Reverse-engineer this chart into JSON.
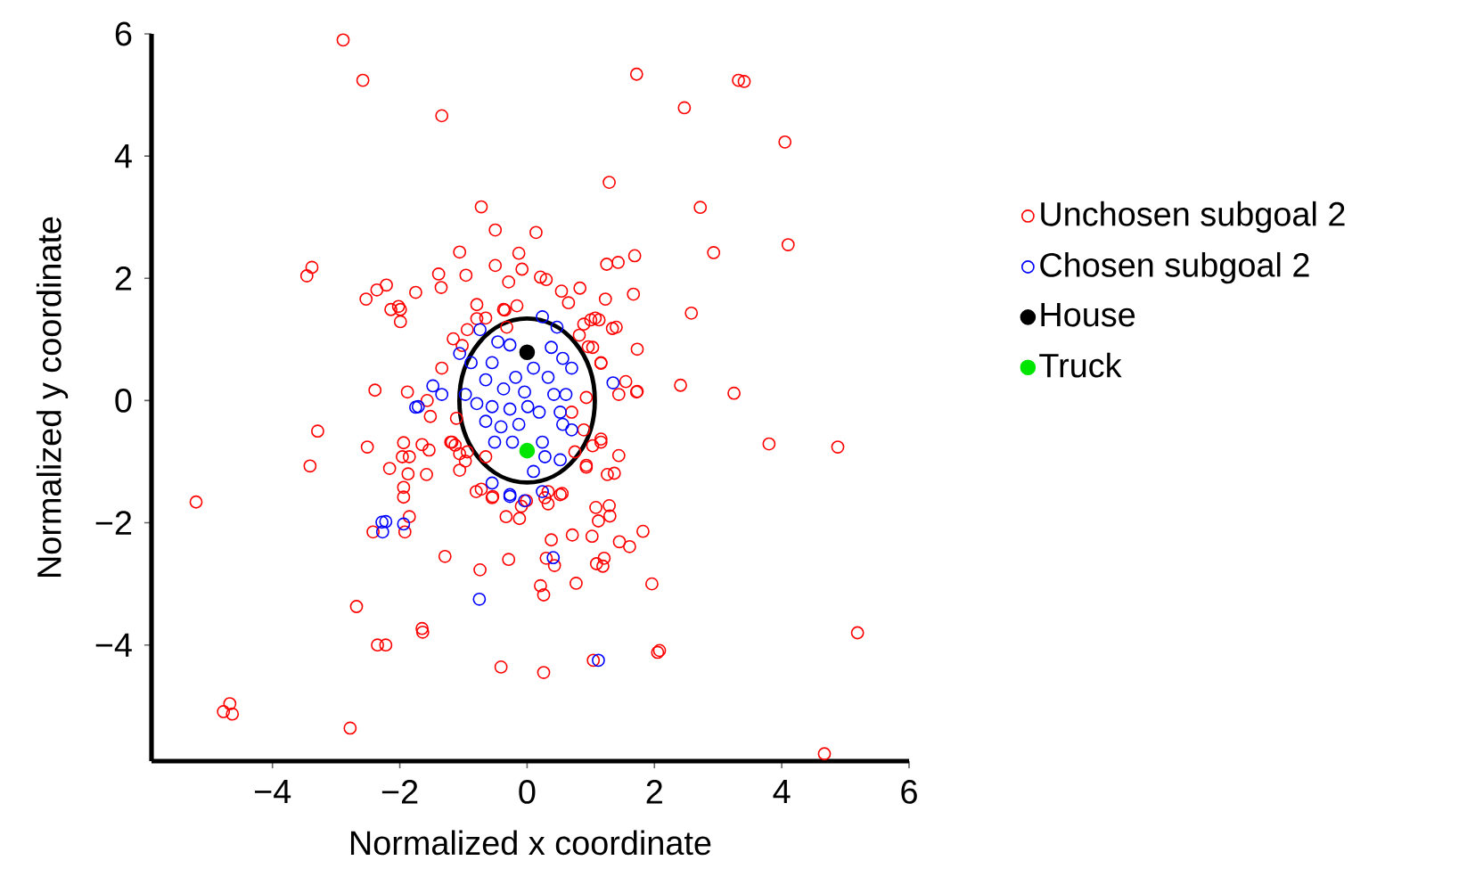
{
  "chart_data": {
    "type": "scatter",
    "xlabel": "Normalized x coordinate",
    "ylabel": "Normalized y coordinate",
    "xlim": [
      -5.9,
      6
    ],
    "ylim": [
      -5.9,
      6
    ],
    "xticks": [
      {
        "value": -4,
        "label": "−4"
      },
      {
        "value": -2,
        "label": "−2"
      },
      0,
      2,
      4,
      6
    ],
    "yticks": [
      {
        "value": -4,
        "label": "−4"
      },
      {
        "value": -2,
        "label": "−2"
      },
      0,
      2,
      4,
      6
    ],
    "marker": "circle",
    "legend": "right",
    "series": [
      {
        "name": "Unchosen subgoal 2",
        "color": "#ff0000",
        "x": [
          -2.89,
          -2.58,
          -1.34,
          -0.72,
          -0.5,
          -1.06,
          -0.13,
          -3.38,
          -3.46,
          -0.5,
          -0.08,
          -1.39,
          -0.96,
          -0.29,
          -2.21,
          -2.36,
          -1.35,
          -1.75,
          -2.53,
          -2.02,
          -2.14,
          -1.99,
          -0.79,
          -0.16,
          -0.35,
          -0.79,
          -0.94,
          -1.16,
          -1.02,
          -2.39,
          -1.88,
          1.72,
          3.32,
          3.41,
          2.47,
          4.05,
          1.29,
          2.72,
          0.14,
          4.1,
          2.93,
          1.69,
          1.25,
          1.43,
          0.21,
          0.3,
          0.83,
          0.54,
          0.65,
          1.67,
          1.23,
          2.58,
          1.0,
          1.13,
          1.34,
          0.82,
          1.73,
          0.96,
          1.16,
          2.41,
          3.25,
          1.55,
          3.8,
          4.88,
          1.44,
          1.16,
          0.93,
          1.26,
          1.37,
          0.55,
          0.33,
          -0.01,
          1.08,
          1.29,
          1.3,
          1.12,
          1.82,
          0.71,
          1.02,
          0.38,
          1.45,
          1.61,
          0.3,
          1.09,
          1.21,
          1.19,
          0.43,
          0.21,
          0.26,
          0.77,
          1.96,
          5.19,
          2.05,
          2.08,
          1.04,
          0.26,
          4.67,
          1.73,
          1.03,
          0.75,
          0.28,
          -0.09,
          -5.2,
          -3.29,
          -3.41,
          -2.51,
          -2.16,
          -1.94,
          -1.65,
          -1.54,
          -1.96,
          -1.85,
          -1.87,
          -1.58,
          -1.94,
          -1.94,
          -1.85,
          -2.42,
          -1.92,
          -1.29,
          -0.74,
          -0.29,
          -2.68,
          -1.65,
          -1.64,
          -2.35,
          -2.22,
          -0.41,
          -4.67,
          -4.77,
          -4.63,
          -2.78,
          -1.52,
          -1.18,
          -1.13,
          -1.06,
          -0.8,
          -0.72,
          -0.54,
          -0.33,
          -0.12,
          -0.94,
          -0.97,
          -0.65,
          0.89,
          1.03,
          1.16,
          1.44,
          1.72,
          0.93,
          0.7,
          0.89,
          1.16,
          0.93,
          0.52,
          0.33,
          -0.55,
          -1.06,
          -1.2,
          -1.11,
          -1.57,
          -0.65,
          -0.32,
          -0.37,
          -1.99,
          -1.34,
          1.4,
          1.07
        ],
        "values": [
          5.9,
          5.24,
          4.66,
          3.17,
          2.79,
          2.43,
          2.41,
          2.18,
          2.04,
          2.21,
          2.15,
          2.07,
          2.05,
          1.94,
          1.89,
          1.81,
          1.85,
          1.77,
          1.66,
          1.54,
          1.49,
          1.29,
          1.57,
          1.55,
          1.48,
          1.34,
          1.16,
          1.01,
          0.9,
          0.17,
          0.14,
          5.34,
          5.24,
          5.22,
          4.79,
          4.23,
          3.57,
          3.16,
          2.75,
          2.55,
          2.42,
          2.37,
          2.23,
          2.26,
          2.02,
          1.98,
          1.84,
          1.79,
          1.6,
          1.74,
          1.66,
          1.43,
          1.32,
          1.32,
          1.18,
          1.07,
          0.84,
          0.88,
          0.61,
          0.25,
          0.12,
          0.31,
          -0.71,
          -0.76,
          -0.9,
          -0.63,
          -1.09,
          -1.21,
          -1.19,
          -1.52,
          -1.49,
          -1.64,
          -1.75,
          -1.72,
          -1.89,
          -1.97,
          -2.14,
          -2.2,
          -2.22,
          -2.28,
          -2.31,
          -2.39,
          -2.58,
          -2.67,
          -2.58,
          -2.71,
          -2.7,
          -3.03,
          -3.18,
          -2.99,
          -3.0,
          -3.8,
          -4.12,
          -4.09,
          -4.25,
          -4.45,
          -5.78,
          0.15,
          -0.74,
          -0.84,
          -1.59,
          -1.73,
          -1.66,
          -0.5,
          -1.07,
          -0.76,
          -1.11,
          -0.69,
          -0.72,
          -0.81,
          -0.92,
          -0.92,
          -1.2,
          -1.21,
          -1.42,
          -1.58,
          -1.9,
          -2.15,
          -2.15,
          -2.55,
          -2.77,
          -2.6,
          -3.37,
          -3.73,
          -3.79,
          -4.0,
          -4.0,
          -4.36,
          -4.96,
          -5.09,
          -5.13,
          -5.36,
          -0.26,
          -0.68,
          -0.73,
          -1.14,
          -1.49,
          -1.45,
          -1.57,
          -1.9,
          -1.93,
          -0.84,
          -0.99,
          -0.92,
          1.25,
          0.87,
          0.62,
          0.1,
          0.14,
          0.05,
          -0.19,
          -0.48,
          -0.68,
          -1.06,
          -1.54,
          -1.69,
          -1.59,
          -0.87,
          -0.68,
          -0.29,
          0.0,
          1.35,
          1.2,
          1.49,
          1.49,
          0.53,
          1.2,
          1.35
        ]
      },
      {
        "name": "Chosen subgoal 2",
        "color": "#0000ff",
        "x": [
          1.12,
          0.41,
          -1.75,
          -2.28,
          -2.27,
          -1.94,
          -0.75,
          -0.27,
          0.24,
          0.47,
          -0.74,
          -0.46,
          -0.27,
          0.38,
          0.56,
          -0.88,
          -0.55,
          -0.18,
          0.1,
          0.33,
          0.7,
          -0.65,
          -0.37,
          -0.04,
          0.42,
          0.61,
          -0.97,
          -1.48,
          -1.34,
          -0.79,
          -0.55,
          -0.27,
          0.01,
          0.19,
          0.52,
          -0.65,
          -0.41,
          -0.13,
          0.56,
          0.7,
          -0.51,
          -0.23,
          0.24,
          0.28,
          0.52,
          0.1,
          -0.55,
          -0.27,
          -0.04,
          0.24,
          1.35,
          -1.71,
          -2.22,
          -1.06
        ],
        "values": [
          -4.25,
          -2.57,
          -0.11,
          -1.99,
          -2.15,
          -2.02,
          -3.25,
          -1.57,
          1.37,
          1.2,
          1.16,
          0.96,
          0.91,
          0.87,
          0.69,
          0.62,
          0.62,
          0.38,
          0.53,
          0.38,
          0.53,
          0.34,
          0.19,
          0.14,
          0.1,
          0.1,
          0.1,
          0.24,
          0.1,
          -0.05,
          -0.1,
          -0.14,
          -0.1,
          -0.19,
          -0.19,
          -0.34,
          -0.43,
          -0.39,
          -0.39,
          -0.48,
          -0.68,
          -0.68,
          -0.68,
          -0.92,
          -0.97,
          -1.16,
          -1.35,
          -1.54,
          -1.64,
          -1.49,
          0.29,
          -0.1,
          -1.98,
          0.77
        ]
      },
      {
        "name": "House",
        "color": "#000000",
        "x": [
          0.0
        ],
        "values": [
          0.79
        ]
      },
      {
        "name": "Truck",
        "color": "#00e600",
        "x": [
          0.0
        ],
        "values": [
          -0.82
        ]
      }
    ]
  }
}
